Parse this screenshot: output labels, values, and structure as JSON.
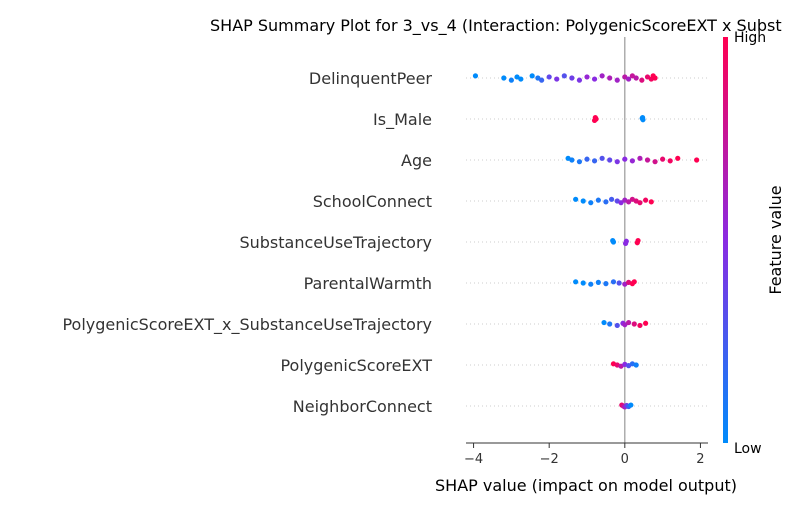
{
  "chart_data": {
    "type": "scatter",
    "title": "SHAP Summary Plot for 3_vs_4 (Interaction: PolygenicScoreEXT x Subst",
    "xlabel": "SHAP value (impact on model output)",
    "xlim": [
      -4.2,
      2.2
    ],
    "xticks": [
      -4,
      -2,
      0,
      2
    ],
    "xtick_labels": [
      "−4",
      "−2",
      "0",
      "2"
    ],
    "grid": false,
    "colorbar": {
      "label": "Feature value",
      "high_label": "High",
      "low_label": "Low",
      "high_color": "#ff0051",
      "low_color": "#008bfb"
    },
    "features": [
      {
        "name": "DelinquentPeer",
        "spread": 0.18,
        "points": [
          [
            -3.95,
            0.0
          ],
          [
            -3.2,
            0.0
          ],
          [
            -3.0,
            0.05
          ],
          [
            -2.85,
            0.0
          ],
          [
            -2.75,
            0.0
          ],
          [
            -2.45,
            0.0
          ],
          [
            -2.3,
            0.1
          ],
          [
            -2.2,
            0.2
          ],
          [
            -2.0,
            0.35
          ],
          [
            -1.8,
            0.45
          ],
          [
            -1.6,
            0.3
          ],
          [
            -1.4,
            0.4
          ],
          [
            -1.2,
            0.45
          ],
          [
            -1.0,
            0.55
          ],
          [
            -0.8,
            0.5
          ],
          [
            -0.6,
            0.6
          ],
          [
            -0.4,
            0.65
          ],
          [
            -0.2,
            0.6
          ],
          [
            0.0,
            0.7
          ],
          [
            0.1,
            0.6
          ],
          [
            0.2,
            0.75
          ],
          [
            0.3,
            0.7
          ],
          [
            0.45,
            0.85
          ],
          [
            0.6,
            0.9
          ],
          [
            0.7,
            0.95
          ],
          [
            0.75,
            1.0
          ],
          [
            0.8,
            1.0
          ]
        ]
      },
      {
        "name": "Is_Male",
        "spread": 0.12,
        "points": [
          [
            -0.78,
            1.0
          ],
          [
            -0.76,
            1.0
          ],
          [
            -0.8,
            1.0
          ],
          [
            0.46,
            0.0
          ],
          [
            0.48,
            0.0
          ],
          [
            0.47,
            0.0
          ]
        ]
      },
      {
        "name": "Age",
        "spread": 0.14,
        "points": [
          [
            -1.5,
            0.0
          ],
          [
            -1.4,
            0.05
          ],
          [
            -1.2,
            0.1
          ],
          [
            -1.0,
            0.2
          ],
          [
            -0.8,
            0.2
          ],
          [
            -0.6,
            0.3
          ],
          [
            -0.4,
            0.35
          ],
          [
            -0.2,
            0.45
          ],
          [
            0.0,
            0.5
          ],
          [
            0.2,
            0.55
          ],
          [
            0.4,
            0.65
          ],
          [
            0.6,
            0.75
          ],
          [
            0.8,
            0.8
          ],
          [
            1.0,
            0.9
          ],
          [
            1.2,
            0.95
          ],
          [
            1.4,
            1.0
          ],
          [
            1.9,
            1.0
          ]
        ]
      },
      {
        "name": "SchoolConnect",
        "spread": 0.14,
        "points": [
          [
            -1.3,
            0.0
          ],
          [
            -1.1,
            0.0
          ],
          [
            -0.9,
            0.05
          ],
          [
            -0.7,
            0.1
          ],
          [
            -0.5,
            0.15
          ],
          [
            -0.35,
            0.25
          ],
          [
            -0.2,
            0.35
          ],
          [
            -0.1,
            0.5
          ],
          [
            0.0,
            0.6
          ],
          [
            0.1,
            0.7
          ],
          [
            0.2,
            0.8
          ],
          [
            0.3,
            0.85
          ],
          [
            0.4,
            0.9
          ],
          [
            0.55,
            0.95
          ],
          [
            0.7,
            1.0
          ]
        ]
      },
      {
        "name": "SubstanceUseTrajectory",
        "spread": 0.12,
        "points": [
          [
            -0.32,
            0.0
          ],
          [
            -0.3,
            0.0
          ],
          [
            0.02,
            0.5
          ],
          [
            0.04,
            0.5
          ],
          [
            0.33,
            1.0
          ],
          [
            0.35,
            1.0
          ]
        ]
      },
      {
        "name": "ParentalWarmth",
        "spread": 0.1,
        "points": [
          [
            -1.3,
            0.0
          ],
          [
            -1.1,
            0.0
          ],
          [
            -0.9,
            0.05
          ],
          [
            -0.7,
            0.05
          ],
          [
            -0.5,
            0.1
          ],
          [
            -0.3,
            0.15
          ],
          [
            -0.15,
            0.3
          ],
          [
            0.0,
            0.6
          ],
          [
            0.1,
            0.85
          ],
          [
            0.2,
            1.0
          ],
          [
            0.25,
            1.0
          ]
        ]
      },
      {
        "name": "PolygenicScoreEXT_x_SubstanceUseTrajectory",
        "spread": 0.12,
        "points": [
          [
            -0.55,
            0.0
          ],
          [
            -0.4,
            0.1
          ],
          [
            -0.2,
            0.3
          ],
          [
            -0.05,
            0.5
          ],
          [
            0.0,
            0.6
          ],
          [
            0.1,
            0.7
          ],
          [
            0.25,
            0.85
          ],
          [
            0.4,
            0.95
          ],
          [
            0.55,
            1.0
          ]
        ]
      },
      {
        "name": "PolygenicScoreEXT",
        "spread": 0.1,
        "points": [
          [
            -0.3,
            1.0
          ],
          [
            -0.2,
            0.9
          ],
          [
            -0.1,
            0.7
          ],
          [
            0.0,
            0.5
          ],
          [
            0.1,
            0.3
          ],
          [
            0.2,
            0.15
          ],
          [
            0.3,
            0.05
          ]
        ]
      },
      {
        "name": "NeighborConnect",
        "spread": 0.08,
        "points": [
          [
            -0.08,
            0.9
          ],
          [
            -0.04,
            0.8
          ],
          [
            0.0,
            0.6
          ],
          [
            0.05,
            0.4
          ],
          [
            0.1,
            0.2
          ],
          [
            0.16,
            0.0
          ]
        ]
      }
    ]
  }
}
